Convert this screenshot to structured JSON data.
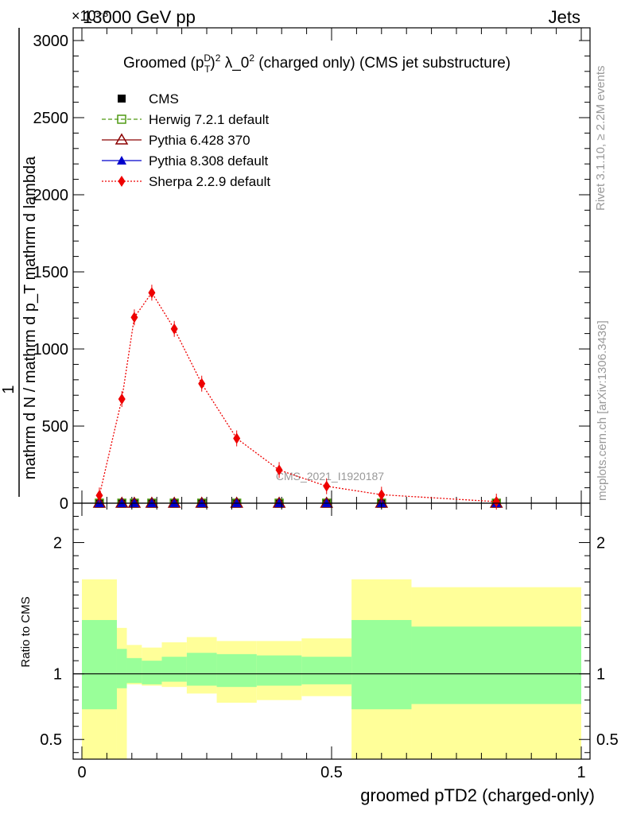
{
  "header": {
    "left": "13000 GeV pp",
    "right": "Jets",
    "exponent": "×10⁻³"
  },
  "side_labels": {
    "rivet": "Rivet 3.1.10, ≥ 2.2M events",
    "mcplots": "mcplots.cern.ch [arXiv:1306.3436]"
  },
  "chart_data": [
    {
      "type": "line",
      "title": "Groomed (p_T^D)^2 λ_0^2 (charged only) (CMS jet substructure)",
      "title_parts": {
        "prefix": "Groomed",
        "pt": "p",
        "pt_sup": "D",
        "pt_sub": "T",
        "sq": "2",
        "lambda": "λ_0",
        "rest": "(charged only) (CMS jet substructure)"
      },
      "ylabel_lines": [
        "mathrm d N / mathrm d p_T mathrm d lambda",
        "1",
        "mathrm d N / mathrm d p_T mathrm d lambda",
        "mathrm dN"
      ],
      "ylabel_fraction": {
        "numerator": "mathrm dN",
        "denominator": "mathrm d p_T mathrm d lambda",
        "outer_numerator": "1",
        "outer_denominator": "mathrm d N / mathrm d p_T mathrm d lambda"
      },
      "xlim": [
        0,
        1
      ],
      "ylim": [
        0,
        3000
      ],
      "y_ticks": [
        0,
        500,
        1000,
        1500,
        2000,
        2500,
        3000
      ],
      "y_tick_labels": [
        "0",
        "500",
        "1000",
        "1500",
        "2000",
        "2500",
        "3000"
      ],
      "watermark": "CMS_2021_I1920187",
      "legend_position": "top-left",
      "series": [
        {
          "name": "CMS",
          "style": "marker-square",
          "color": "#000000",
          "x": [
            0.035,
            0.08,
            0.105,
            0.14,
            0.185,
            0.24,
            0.31,
            0.395,
            0.49,
            0.6,
            0.83
          ],
          "values": [
            0,
            0,
            0,
            0,
            0,
            0,
            0,
            0,
            0,
            0,
            0
          ]
        },
        {
          "name": "Herwig 7.2.1 default",
          "style": "dashed-open-square",
          "color": "#4f9a12",
          "x": [
            0.035,
            0.08,
            0.105,
            0.14,
            0.185,
            0.24,
            0.31,
            0.395,
            0.49,
            0.6,
            0.83
          ],
          "values": [
            0,
            0,
            0,
            0,
            0,
            0,
            0,
            0,
            0,
            0,
            0
          ]
        },
        {
          "name": "Pythia 6.428 370",
          "style": "solid-open-triangle",
          "color": "#8b0000",
          "x": [
            0.035,
            0.08,
            0.105,
            0.14,
            0.185,
            0.24,
            0.31,
            0.395,
            0.49,
            0.6,
            0.83
          ],
          "values": [
            0,
            0,
            0,
            0,
            0,
            0,
            0,
            0,
            0,
            0,
            0
          ]
        },
        {
          "name": "Pythia 8.308 default",
          "style": "solid-filled-triangle",
          "color": "#0000cc",
          "x": [
            0.035,
            0.08,
            0.105,
            0.14,
            0.185,
            0.24,
            0.31,
            0.395,
            0.49,
            0.6,
            0.83
          ],
          "values": [
            0,
            0,
            0,
            0,
            0,
            0,
            0,
            0,
            0,
            0,
            0
          ]
        },
        {
          "name": "Sherpa 2.2.9 default",
          "style": "dotted-diamond",
          "color": "#ee0000",
          "x": [
            0.035,
            0.08,
            0.105,
            0.14,
            0.185,
            0.24,
            0.31,
            0.395,
            0.49,
            0.6,
            0.83
          ],
          "values": [
            50,
            675,
            1205,
            1365,
            1130,
            775,
            420,
            215,
            110,
            55,
            10
          ]
        }
      ]
    },
    {
      "type": "area",
      "ylabel": "Ratio to CMS",
      "xlabel": "groomed pTD2 (charged-only)",
      "xlim": [
        0,
        1
      ],
      "ylim": [
        0.35,
        2.3
      ],
      "x_ticks": [
        0,
        0.5,
        1
      ],
      "x_tick_labels": [
        "0",
        "0.5",
        "1"
      ],
      "y_ticks": [
        0.5,
        1,
        2
      ],
      "y_tick_labels": [
        "0.5",
        "1",
        "2"
      ],
      "bins": [
        0,
        0.07,
        0.09,
        0.12,
        0.16,
        0.21,
        0.27,
        0.35,
        0.44,
        0.54,
        0.66,
        1.0
      ],
      "yellow_band": {
        "lo": [
          0.35,
          0.35,
          0.92,
          0.91,
          0.9,
          0.85,
          0.78,
          0.8,
          0.83,
          0.35,
          0.35
        ],
        "hi": [
          1.72,
          1.35,
          1.22,
          1.2,
          1.24,
          1.28,
          1.25,
          1.25,
          1.27,
          1.72,
          1.66
        ]
      },
      "green_band": {
        "lo": [
          0.73,
          0.89,
          0.93,
          0.92,
          0.94,
          0.91,
          0.9,
          0.91,
          0.92,
          0.73,
          0.77
        ],
        "hi": [
          1.41,
          1.19,
          1.12,
          1.1,
          1.13,
          1.16,
          1.15,
          1.14,
          1.13,
          1.41,
          1.36
        ]
      },
      "reference_line": 1
    }
  ]
}
